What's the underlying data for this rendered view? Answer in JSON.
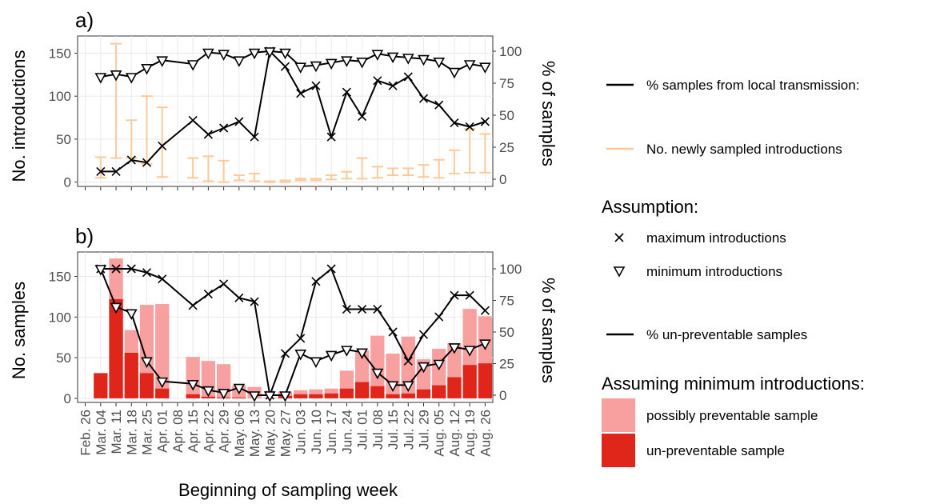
{
  "colors": {
    "line": "#000000",
    "introductions_bar": "#fdc998",
    "preventable": "#f8a0a0",
    "unpreventable": "#e0251b",
    "grid": "#ebebeb"
  },
  "xlabel": "Beginning of sampling week",
  "weeks": [
    "Feb. 26",
    "Mar. 04",
    "Mar. 11",
    "Mar. 18",
    "Mar. 25",
    "Apr. 01",
    "Apr. 08",
    "Apr. 15",
    "Apr. 22",
    "Apr. 29",
    "May. 06",
    "May. 13",
    "May. 20",
    "May. 27",
    "Jun. 03",
    "Jun. 10",
    "Jun. 17",
    "Jun. 24",
    "Jul. 01",
    "Jul. 08",
    "Jul. 15",
    "Jul. 22",
    "Jul. 29",
    "Aug. 05",
    "Aug. 12",
    "Aug. 19",
    "Aug. 26"
  ],
  "legend": {
    "local_label": "% samples from local transmission:",
    "introductions_label": "No. newly sampled introductions",
    "assumption_title": "Assumption:",
    "max_label": "maximum introductions",
    "min_label": "minimum introductions",
    "unpreventable_line_label": "% un-preventable samples",
    "bars_title": "Assuming minimum introductions:",
    "preventable_label": "possibly preventable sample",
    "unpreventable_label": "un-preventable sample"
  },
  "chart_data": [
    {
      "panel": "a)",
      "type": "line",
      "ylabel": "No. introductions",
      "ylabel_right": "% of samples",
      "ylim": [
        -5,
        170
      ],
      "y_ticks": [
        0,
        50,
        100,
        150
      ],
      "y2_ticks": [
        0,
        25,
        50,
        75,
        100
      ],
      "grid": true,
      "introductions_range": [
        {
          "week": "Mar. 04",
          "min": 5,
          "max": 29
        },
        {
          "week": "Mar. 11",
          "min": 28,
          "max": 161
        },
        {
          "week": "Mar. 18",
          "min": 28,
          "max": 72
        },
        {
          "week": "Mar. 25",
          "min": 21,
          "max": 100
        },
        {
          "week": "Apr. 01",
          "min": 6,
          "max": 87
        },
        {
          "week": "Apr. 15",
          "min": 5,
          "max": 28
        },
        {
          "week": "Apr. 22",
          "min": 1,
          "max": 30
        },
        {
          "week": "Apr. 29",
          "min": 0,
          "max": 25
        },
        {
          "week": "May. 06",
          "min": 2,
          "max": 8
        },
        {
          "week": "May. 13",
          "min": 1,
          "max": 10
        },
        {
          "week": "May. 20",
          "min": 0,
          "max": 1
        },
        {
          "week": "May. 27",
          "min": 0,
          "max": 2
        },
        {
          "week": "Jun. 03",
          "min": 2,
          "max": 4
        },
        {
          "week": "Jun. 10",
          "min": 2,
          "max": 4
        },
        {
          "week": "Jun. 17",
          "min": 3,
          "max": 8
        },
        {
          "week": "Jun. 24",
          "min": 4,
          "max": 12
        },
        {
          "week": "Jul. 01",
          "min": 4,
          "max": 28
        },
        {
          "week": "Jul. 08",
          "min": 5,
          "max": 18
        },
        {
          "week": "Jul. 15",
          "min": 8,
          "max": 16
        },
        {
          "week": "Jul. 22",
          "min": 8,
          "max": 16
        },
        {
          "week": "Jul. 29",
          "min": 6,
          "max": 20
        },
        {
          "week": "Aug. 05",
          "min": 5,
          "max": 26
        },
        {
          "week": "Aug. 12",
          "min": 10,
          "max": 37
        },
        {
          "week": "Aug. 19",
          "min": 11,
          "max": 62
        },
        {
          "week": "Aug. 26",
          "min": 11,
          "max": 56
        }
      ],
      "series": [
        {
          "name": "maximum introductions",
          "marker": "x",
          "weeks": [
            "Mar. 04",
            "Mar. 11",
            "Mar. 18",
            "Mar. 25",
            "Apr. 01",
            "Apr. 15",
            "Apr. 22",
            "Apr. 29",
            "May. 06",
            "May. 13",
            "May. 20",
            "May. 27",
            "Jun. 03",
            "Jun. 10",
            "Jun. 17",
            "Jun. 24",
            "Jul. 01",
            "Jul. 08",
            "Jul. 15",
            "Jul. 22",
            "Jul. 29",
            "Aug. 05",
            "Aug. 12",
            "Aug. 19",
            "Aug. 26"
          ],
          "values": [
            6,
            6,
            15,
            13,
            26,
            46,
            35,
            40,
            45,
            33,
            100,
            88,
            67,
            73,
            33,
            68,
            49,
            77,
            73,
            80,
            63,
            58,
            44,
            41,
            45
          ]
        },
        {
          "name": "minimum introductions",
          "marker": "triangle-down",
          "weeks": [
            "Mar. 04",
            "Mar. 11",
            "Mar. 18",
            "Mar. 25",
            "Apr. 01",
            "Apr. 15",
            "Apr. 22",
            "Apr. 29",
            "May. 06",
            "May. 13",
            "May. 20",
            "May. 27",
            "Jun. 03",
            "Jun. 10",
            "Jun. 17",
            "Jun. 24",
            "Jul. 01",
            "Jul. 08",
            "Jul. 15",
            "Jul. 22",
            "Jul. 29",
            "Aug. 05",
            "Aug. 12",
            "Aug. 19",
            "Aug. 26"
          ],
          "values": [
            80,
            82,
            80,
            87,
            93,
            90,
            99,
            98,
            93,
            99,
            100,
            99,
            88,
            89,
            91,
            93,
            92,
            98,
            96,
            95,
            94,
            92,
            84,
            90,
            88
          ]
        }
      ]
    },
    {
      "panel": "b)",
      "type": "bar",
      "ylabel": "No. samples",
      "ylabel_right": "% of samples",
      "ylim": [
        -5,
        180
      ],
      "y_ticks": [
        0,
        50,
        100,
        150
      ],
      "y2_ticks": [
        0,
        25,
        50,
        75,
        100
      ],
      "grid": true,
      "bars": [
        {
          "week": "Mar. 04",
          "total": 31,
          "unpreventable": 31
        },
        {
          "week": "Mar. 11",
          "total": 172,
          "unpreventable": 122
        },
        {
          "week": "Mar. 18",
          "total": 84,
          "unpreventable": 56
        },
        {
          "week": "Mar. 25",
          "total": 115,
          "unpreventable": 31
        },
        {
          "week": "Apr. 01",
          "total": 116,
          "unpreventable": 12
        },
        {
          "week": "Apr. 15",
          "total": 51,
          "unpreventable": 5
        },
        {
          "week": "Apr. 22",
          "total": 46,
          "unpreventable": 2
        },
        {
          "week": "Apr. 29",
          "total": 42,
          "unpreventable": 1
        },
        {
          "week": "May. 06",
          "total": 16,
          "unpreventable": 1
        },
        {
          "week": "May. 13",
          "total": 14,
          "unpreventable": 0
        },
        {
          "week": "May. 20",
          "total": 1,
          "unpreventable": 0
        },
        {
          "week": "May. 27",
          "total": 8,
          "unpreventable": 3
        },
        {
          "week": "Jun. 03",
          "total": 10,
          "unpreventable": 5
        },
        {
          "week": "Jun. 10",
          "total": 11,
          "unpreventable": 5
        },
        {
          "week": "Jun. 17",
          "total": 12,
          "unpreventable": 6
        },
        {
          "week": "Jun. 24",
          "total": 34,
          "unpreventable": 12
        },
        {
          "week": "Jul. 01",
          "total": 59,
          "unpreventable": 20
        },
        {
          "week": "Jul. 08",
          "total": 77,
          "unpreventable": 15
        },
        {
          "week": "Jul. 15",
          "total": 55,
          "unpreventable": 5
        },
        {
          "week": "Jul. 22",
          "total": 76,
          "unpreventable": 6
        },
        {
          "week": "Jul. 29",
          "total": 48,
          "unpreventable": 11
        },
        {
          "week": "Aug. 05",
          "total": 61,
          "unpreventable": 16
        },
        {
          "week": "Aug. 12",
          "total": 68,
          "unpreventable": 26
        },
        {
          "week": "Aug. 19",
          "total": 110,
          "unpreventable": 41
        },
        {
          "week": "Aug. 26",
          "total": 101,
          "unpreventable": 43
        }
      ],
      "series": [
        {
          "name": "maximum introductions",
          "marker": "x",
          "weeks": [
            "Mar. 04",
            "Mar. 11",
            "Mar. 18",
            "Mar. 25",
            "Apr. 01",
            "Apr. 15",
            "Apr. 22",
            "Apr. 29",
            "May. 06",
            "May. 13",
            "May. 20",
            "May. 27",
            "Jun. 03",
            "Jun. 10",
            "Jun. 17",
            "Jun. 24",
            "Jul. 01",
            "Jul. 08",
            "Jul. 15",
            "Jul. 22",
            "Jul. 29",
            "Aug. 05",
            "Aug. 12",
            "Aug. 19",
            "Aug. 26"
          ],
          "values": [
            100,
            100,
            100,
            97,
            92,
            71,
            80,
            88,
            77,
            74,
            0,
            33,
            45,
            90,
            100,
            68,
            68,
            68,
            50,
            27,
            48,
            62,
            79,
            79,
            67
          ]
        },
        {
          "name": "minimum introductions",
          "marker": "triangle-down",
          "weeks": [
            "Mar. 04",
            "Mar. 11",
            "Mar. 18",
            "Mar. 25",
            "Apr. 01",
            "Apr. 15",
            "Apr. 22",
            "Apr. 29",
            "May. 06",
            "May. 13",
            "May. 20",
            "May. 27",
            "Jun. 03",
            "Jun. 10",
            "Jun. 17",
            "Jun. 24",
            "Jul. 01",
            "Jul. 08",
            "Jul. 15",
            "Jul. 22",
            "Jul. 29",
            "Aug. 05",
            "Aug. 12",
            "Aug. 19",
            "Aug. 26"
          ],
          "values": [
            100,
            70,
            65,
            27,
            11,
            9,
            4,
            2,
            6,
            0,
            0,
            0,
            33,
            27,
            32,
            36,
            34,
            18,
            8,
            8,
            23,
            25,
            38,
            36,
            41
          ]
        }
      ]
    }
  ]
}
